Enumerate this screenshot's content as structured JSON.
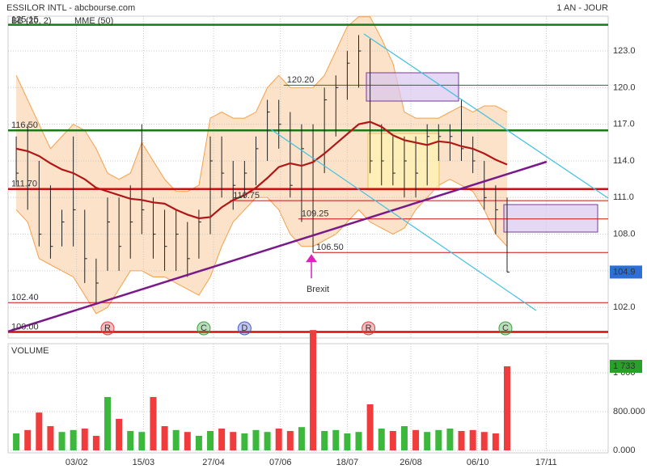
{
  "header": {
    "title": "ESSILOR INTL - abcbourse.com",
    "period": "1 AN - JOUR"
  },
  "chart_data": [
    {
      "type": "ohlc",
      "color": "#222222",
      "x": [
        -3,
        4,
        11,
        18,
        25,
        32,
        39,
        46,
        53,
        60,
        67,
        74,
        81,
        88,
        95,
        102,
        109,
        116,
        123,
        130,
        137,
        144,
        151,
        158,
        165,
        172,
        179,
        186,
        193,
        200,
        207,
        214,
        221,
        228,
        235,
        242,
        249,
        256,
        263,
        270,
        277,
        284,
        291,
        298
      ],
      "high": [
        116,
        117,
        114,
        112,
        110,
        116,
        110,
        106,
        111,
        111,
        112,
        117,
        111,
        110,
        110,
        109,
        110,
        116,
        116,
        114,
        114,
        116,
        119,
        119,
        118,
        117,
        117,
        120,
        121,
        123,
        124.3,
        124,
        117,
        116,
        116,
        116,
        117,
        117,
        117,
        119,
        116,
        114,
        112,
        111
      ],
      "low": [
        112,
        110,
        107,
        106,
        107,
        107,
        104,
        102.4,
        105,
        105,
        106,
        108,
        106,
        105,
        105,
        104.5,
        106,
        108,
        111,
        110,
        111,
        112,
        114,
        115,
        111,
        109,
        106.5,
        113,
        116,
        119,
        120,
        113,
        112,
        112,
        111,
        111,
        112,
        114,
        114,
        114,
        113,
        110,
        108,
        104.9
      ],
      "close": [
        113,
        112,
        108,
        107,
        109,
        110,
        106,
        104,
        109,
        107,
        109,
        110,
        108,
        107,
        108,
        106,
        109,
        114,
        113,
        112,
        113,
        115,
        118,
        117,
        112,
        115,
        114,
        119,
        120,
        122,
        123,
        114,
        114,
        113,
        114,
        113,
        116,
        116,
        116,
        115,
        114,
        111,
        110,
        104.9
      ],
      "mme": {
        "name": "MME (50)",
        "color": "#b01818",
        "values": [
          115.0,
          114.8,
          114.4,
          113.8,
          113.3,
          113.0,
          112.5,
          111.8,
          111.5,
          111.2,
          110.9,
          110.8,
          110.6,
          110.5,
          110.0,
          109.6,
          109.3,
          109.4,
          110.2,
          110.8,
          111.2,
          111.8,
          112.6,
          113.5,
          113.8,
          113.6,
          113.9,
          114.6,
          115.4,
          116.2,
          117.0,
          117.2,
          116.8,
          116.1,
          115.7,
          115.5,
          115.3,
          115.6,
          115.5,
          115.2,
          115.0,
          114.6,
          114.1,
          113.7
        ]
      },
      "bollinger": {
        "name": "BB (20, 2)",
        "color": "#f5a04a",
        "upper": [
          121,
          119,
          117,
          115,
          116,
          117,
          116.5,
          115,
          113,
          112.5,
          113,
          115.5,
          114,
          112.5,
          111.5,
          111.5,
          112,
          117.5,
          118,
          117.5,
          117.5,
          118,
          120,
          121,
          120,
          120,
          120,
          121,
          123,
          125,
          125.8,
          125.8,
          124,
          122,
          118,
          117.5,
          117.5,
          117.5,
          118,
          118.5,
          118,
          118.5,
          118.5,
          118
        ],
        "lower": [
          110,
          109,
          106,
          105.5,
          105,
          104.5,
          103,
          101.5,
          102,
          103.5,
          105,
          105,
          104.5,
          104.5,
          104,
          103.5,
          103,
          104.5,
          107,
          109,
          110,
          111,
          111,
          110,
          108,
          107,
          107,
          107.5,
          108,
          109,
          110,
          109,
          108.5,
          108,
          108.5,
          110,
          111,
          112,
          112.5,
          112,
          111.5,
          110,
          108,
          107
        ]
      },
      "levels": [
        {
          "value": 125.15,
          "label": "125.15",
          "color": "#1a7a1a",
          "style": "thick",
          "x_start": -8
        },
        {
          "value": 120.2,
          "label": "120.20",
          "color": "#1a7a1a",
          "style": "thin",
          "x_start": 161
        },
        {
          "value": 116.5,
          "label": "116.50",
          "color": "#1a7a1a",
          "style": "thick",
          "x_start": -8
        },
        {
          "value": 111.7,
          "label": "111.70",
          "color": "#cc1010",
          "style": "thick",
          "x_start": -8
        },
        {
          "value": 110.75,
          "label": "110.75",
          "color": "#cc1010",
          "style": "thin",
          "x_start": 128
        },
        {
          "value": 109.25,
          "label": "109.25",
          "color": "#cc1010",
          "style": "thin",
          "x_start": 170
        },
        {
          "value": 106.5,
          "label": "106.50",
          "color": "#cc1010",
          "style": "thin",
          "x_start": 179
        },
        {
          "value": 102.4,
          "label": "102.40",
          "color": "#cc1010",
          "style": "thin",
          "x_start": -8
        },
        {
          "value": 100,
          "label": "100.00",
          "color": "#cc1010",
          "style": "thick",
          "x_start": -8
        }
      ],
      "events": [
        {
          "x": 53,
          "label": "R",
          "color": "#e04040"
        },
        {
          "x": 112,
          "label": "C",
          "color": "#3aa03a"
        },
        {
          "x": 137,
          "label": "D",
          "color": "#4a5ad0"
        },
        {
          "x": 213,
          "label": "R",
          "color": "#e04040"
        },
        {
          "x": 297,
          "label": "C",
          "color": "#3aa03a"
        }
      ],
      "annotation": {
        "text": "Brexit",
        "x": 178,
        "y": 106.5,
        "color": "#e020c0"
      },
      "last": 104.9,
      "xlim": [
        -8,
        360
      ],
      "ylim": [
        99.5,
        125.85
      ],
      "yticks": [
        {
          "value": 102,
          "label": "102.0"
        },
        {
          "value": 105,
          "label": "105.0"
        },
        {
          "value": 108,
          "label": "108.0"
        },
        {
          "value": 111,
          "label": "111.0"
        },
        {
          "value": 114,
          "label": "114.0"
        },
        {
          "value": 117,
          "label": "117.0"
        },
        {
          "value": 120,
          "label": "120.0"
        },
        {
          "value": 123,
          "label": "123.0"
        }
      ],
      "grid": true
    },
    {
      "type": "bar",
      "title": "VOLUME",
      "up_color": "#3cb83c",
      "down_color": "#f03c3c",
      "values": [
        350,
        420,
        780,
        500,
        380,
        420,
        450,
        300,
        1100,
        650,
        400,
        380,
        1100,
        500,
        420,
        380,
        300,
        400,
        450,
        380,
        350,
        420,
        380,
        450,
        400,
        480,
        2480,
        400,
        420,
        350,
        380,
        950,
        450,
        400,
        500,
        420,
        380,
        420,
        450,
        400,
        420,
        380,
        350,
        1733
      ],
      "last": {
        "value": 1733,
        "label": "1 733"
      },
      "ylim": [
        0,
        2533
      ],
      "yticks": [
        {
          "value": 0,
          "label": "0.000"
        },
        {
          "value": 800,
          "label": "800.000"
        },
        {
          "value": 1600,
          "label": "1 600"
        }
      ],
      "xticks": [
        {
          "value": 34,
          "label": "03/02"
        },
        {
          "value": 75,
          "label": "15/03"
        },
        {
          "value": 118,
          "label": "27/04"
        },
        {
          "value": 159,
          "label": "07/06"
        },
        {
          "value": 200,
          "label": "18/07"
        },
        {
          "value": 239,
          "label": "26/08"
        },
        {
          "value": 280,
          "label": "06/10"
        },
        {
          "value": 322,
          "label": "17/11"
        }
      ],
      "grid": true
    }
  ]
}
